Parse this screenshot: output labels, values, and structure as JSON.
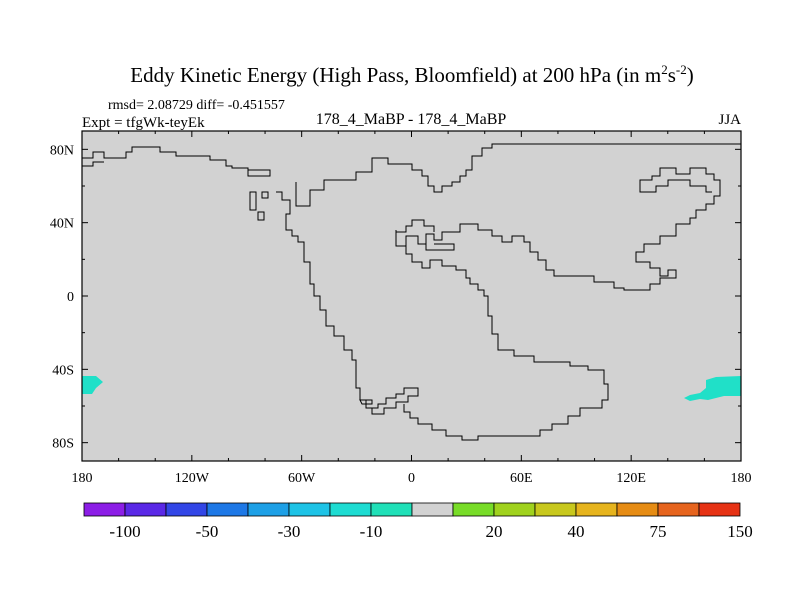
{
  "chart_data": {
    "type": "map-difference",
    "title_main": "Eddy Kinetic Energy (High Pass, Bloomfield) at 200 hPa (in m",
    "title_sup1": "2",
    "title_mid": "s",
    "title_sup2": "-2",
    "title_end": ")",
    "rmsd_label": "rmsd= 2.08729 diff= -0.451557",
    "expt_label": "Expt = tfgWk-teyEk",
    "comparison_label": "178_4_MaBP - 178_4_MaBP",
    "season_label": "JJA",
    "lon_range": [
      -180,
      180
    ],
    "lat_range": [
      -90,
      90
    ],
    "x_ticks": [
      {
        "value": -180,
        "label": "180"
      },
      {
        "value": -120,
        "label": "120W"
      },
      {
        "value": -60,
        "label": "60W"
      },
      {
        "value": 0,
        "label": "0"
      },
      {
        "value": 60,
        "label": "60E"
      },
      {
        "value": 120,
        "label": "120E"
      },
      {
        "value": 180,
        "label": "180"
      }
    ],
    "y_ticks": [
      {
        "value": 80,
        "label": "80N"
      },
      {
        "value": 40,
        "label": "40N"
      },
      {
        "value": 0,
        "label": "0"
      },
      {
        "value": -40,
        "label": "40S"
      },
      {
        "value": -80,
        "label": "80S"
      }
    ],
    "background_color": "#d2d2d2",
    "coastline_color": "#000000",
    "anomaly_regions": [
      {
        "name": "west-pacific-south-negative",
        "color": "#20e0c8",
        "lon_range": [
          -180,
          -175
        ],
        "lat_range": [
          -54,
          -42
        ],
        "level": -10
      },
      {
        "name": "east-pacific-south-negative",
        "color": "#20e0c8",
        "lon_range": [
          148,
          180
        ],
        "lat_range": [
          -58,
          -44
        ],
        "level": -10
      }
    ],
    "colorbar": {
      "colors": [
        "#8c1ee6",
        "#5a28e6",
        "#3246e6",
        "#1e78e6",
        "#1ea0e6",
        "#1ec3e6",
        "#1edcd2",
        "#20e0b8",
        "#d2d2d2",
        "#78dc28",
        "#a0d21e",
        "#c8c81e",
        "#e6b41e",
        "#e68c14",
        "#e6641e",
        "#e63214"
      ],
      "labels": [
        "-100",
        "-50",
        "-30",
        "-10",
        "20",
        "40",
        "75",
        "150"
      ]
    }
  }
}
